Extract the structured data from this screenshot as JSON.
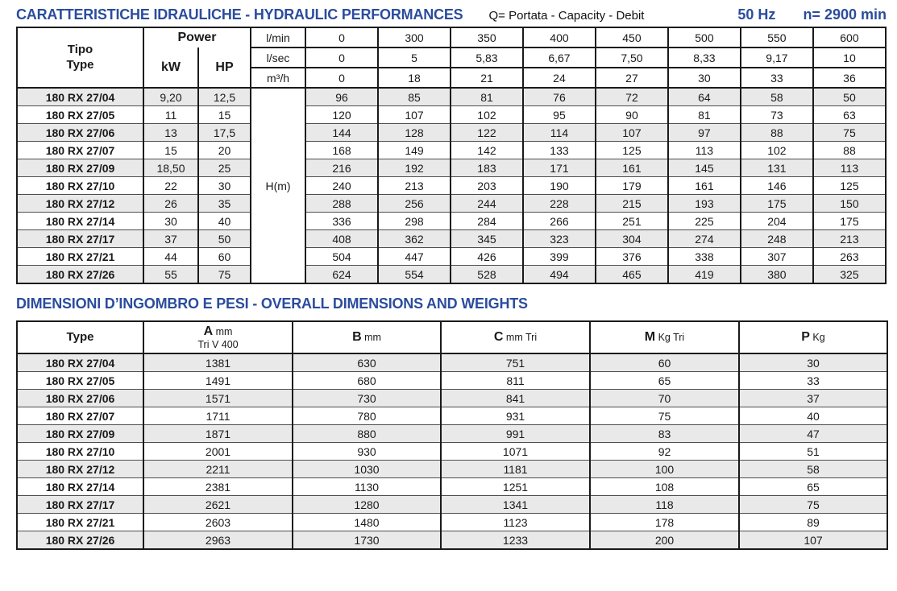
{
  "header": {
    "title": "CARATTERISTICHE IDRAULICHE - HYDRAULIC PERFORMANCES",
    "flow_legend": "Q= Portata - Capacity - Debit",
    "frequency": "50 Hz",
    "speed": "n= 2900 min",
    "accent_color": "#2b4c9e"
  },
  "hydraulic_table": {
    "type_header_line1": "Tipo",
    "type_header_line2": "Type",
    "power_header": "Power",
    "kw_label": "kW",
    "hp_label": "HP",
    "head_label": "H(m)",
    "flow_rows": [
      {
        "unit": "l/min",
        "values": [
          "0",
          "300",
          "350",
          "400",
          "450",
          "500",
          "550",
          "600"
        ]
      },
      {
        "unit": "l/sec",
        "values": [
          "0",
          "5",
          "5,83",
          "6,67",
          "7,50",
          "8,33",
          "9,17",
          "10"
        ]
      },
      {
        "unit": "m³/h",
        "values": [
          "0",
          "18",
          "21",
          "24",
          "27",
          "30",
          "33",
          "36"
        ]
      }
    ],
    "rows": [
      {
        "type": "180 RX 27/04",
        "kw": "9,20",
        "hp": "12,5",
        "head": [
          "96",
          "85",
          "81",
          "76",
          "72",
          "64",
          "58",
          "50"
        ]
      },
      {
        "type": "180 RX 27/05",
        "kw": "11",
        "hp": "15",
        "head": [
          "120",
          "107",
          "102",
          "95",
          "90",
          "81",
          "73",
          "63"
        ]
      },
      {
        "type": "180 RX 27/06",
        "kw": "13",
        "hp": "17,5",
        "head": [
          "144",
          "128",
          "122",
          "114",
          "107",
          "97",
          "88",
          "75"
        ]
      },
      {
        "type": "180 RX 27/07",
        "kw": "15",
        "hp": "20",
        "head": [
          "168",
          "149",
          "142",
          "133",
          "125",
          "113",
          "102",
          "88"
        ]
      },
      {
        "type": "180 RX 27/09",
        "kw": "18,50",
        "hp": "25",
        "head": [
          "216",
          "192",
          "183",
          "171",
          "161",
          "145",
          "131",
          "113"
        ]
      },
      {
        "type": "180 RX 27/10",
        "kw": "22",
        "hp": "30",
        "head": [
          "240",
          "213",
          "203",
          "190",
          "179",
          "161",
          "146",
          "125"
        ]
      },
      {
        "type": "180 RX 27/12",
        "kw": "26",
        "hp": "35",
        "head": [
          "288",
          "256",
          "244",
          "228",
          "215",
          "193",
          "175",
          "150"
        ]
      },
      {
        "type": "180 RX 27/14",
        "kw": "30",
        "hp": "40",
        "head": [
          "336",
          "298",
          "284",
          "266",
          "251",
          "225",
          "204",
          "175"
        ]
      },
      {
        "type": "180 RX 27/17",
        "kw": "37",
        "hp": "50",
        "head": [
          "408",
          "362",
          "345",
          "323",
          "304",
          "274",
          "248",
          "213"
        ]
      },
      {
        "type": "180 RX 27/21",
        "kw": "44",
        "hp": "60",
        "head": [
          "504",
          "447",
          "426",
          "399",
          "376",
          "338",
          "307",
          "263"
        ]
      },
      {
        "type": "180 RX 27/26",
        "kw": "55",
        "hp": "75",
        "head": [
          "624",
          "554",
          "528",
          "494",
          "465",
          "419",
          "380",
          "325"
        ]
      }
    ]
  },
  "dimensions": {
    "title": "DIMENSIONI D’INGOMBRO E PESI - OVERALL DIMENSIONS AND WEIGHTS",
    "columns": [
      {
        "label": "Type",
        "unit": "",
        "sub": ""
      },
      {
        "label": "A",
        "unit": "mm",
        "sub": "Tri V 400"
      },
      {
        "label": "B",
        "unit": "mm",
        "sub": ""
      },
      {
        "label": "C",
        "unit": "mm Tri",
        "sub": ""
      },
      {
        "label": "M",
        "unit": "Kg Tri",
        "sub": ""
      },
      {
        "label": "P",
        "unit": "Kg",
        "sub": ""
      }
    ],
    "rows": [
      {
        "type": "180 RX 27/04",
        "values": [
          "1381",
          "630",
          "751",
          "60",
          "30"
        ]
      },
      {
        "type": "180 RX 27/05",
        "values": [
          "1491",
          "680",
          "811",
          "65",
          "33"
        ]
      },
      {
        "type": "180 RX 27/06",
        "values": [
          "1571",
          "730",
          "841",
          "70",
          "37"
        ]
      },
      {
        "type": "180 RX 27/07",
        "values": [
          "1711",
          "780",
          "931",
          "75",
          "40"
        ]
      },
      {
        "type": "180 RX 27/09",
        "values": [
          "1871",
          "880",
          "991",
          "83",
          "47"
        ]
      },
      {
        "type": "180 RX 27/10",
        "values": [
          "2001",
          "930",
          "1071",
          "92",
          "51"
        ]
      },
      {
        "type": "180 RX 27/12",
        "values": [
          "2211",
          "1030",
          "1181",
          "100",
          "58"
        ]
      },
      {
        "type": "180 RX 27/14",
        "values": [
          "2381",
          "1130",
          "1251",
          "108",
          "65"
        ]
      },
      {
        "type": "180 RX 27/17",
        "values": [
          "2621",
          "1280",
          "1341",
          "118",
          "75"
        ]
      },
      {
        "type": "180 RX 27/21",
        "values": [
          "2603",
          "1480",
          "1123",
          "178",
          "89"
        ]
      },
      {
        "type": "180 RX 27/26",
        "values": [
          "2963",
          "1730",
          "1233",
          "200",
          "107"
        ]
      }
    ]
  }
}
